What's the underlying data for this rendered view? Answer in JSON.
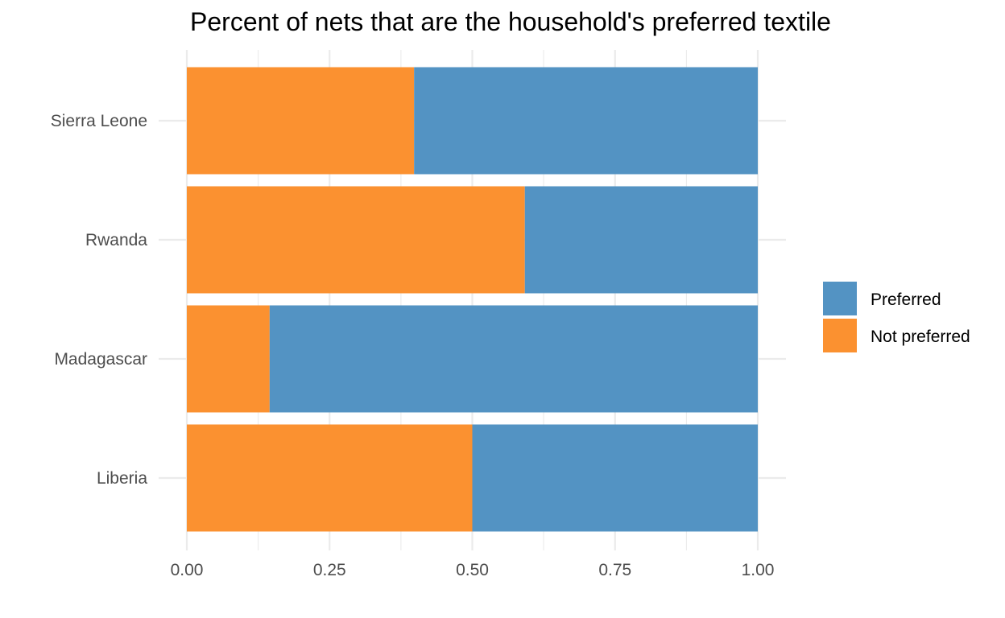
{
  "chart_data": {
    "type": "bar",
    "orientation": "horizontal",
    "stacked": true,
    "title": "Percent of nets that are the household's preferred textile",
    "xlabel": "",
    "ylabel": "",
    "categories": [
      "Liberia",
      "Madagascar",
      "Rwanda",
      "Sierra Leone"
    ],
    "series": [
      {
        "name": "Not preferred",
        "color": "#fb9130",
        "values": [
          0.5,
          0.145,
          0.592,
          0.398
        ]
      },
      {
        "name": "Preferred",
        "color": "#5393c3",
        "values": [
          0.5,
          0.855,
          0.408,
          0.602
        ]
      }
    ],
    "legend_order": [
      "Preferred",
      "Not preferred"
    ],
    "xlim": [
      0,
      1
    ],
    "x_ticks": [
      0,
      0.25,
      0.5,
      0.75,
      1
    ],
    "x_tick_labels": [
      "0.00",
      "0.25",
      "0.50",
      "0.75",
      "1.00"
    ],
    "grid": true,
    "legend_position": "right"
  }
}
